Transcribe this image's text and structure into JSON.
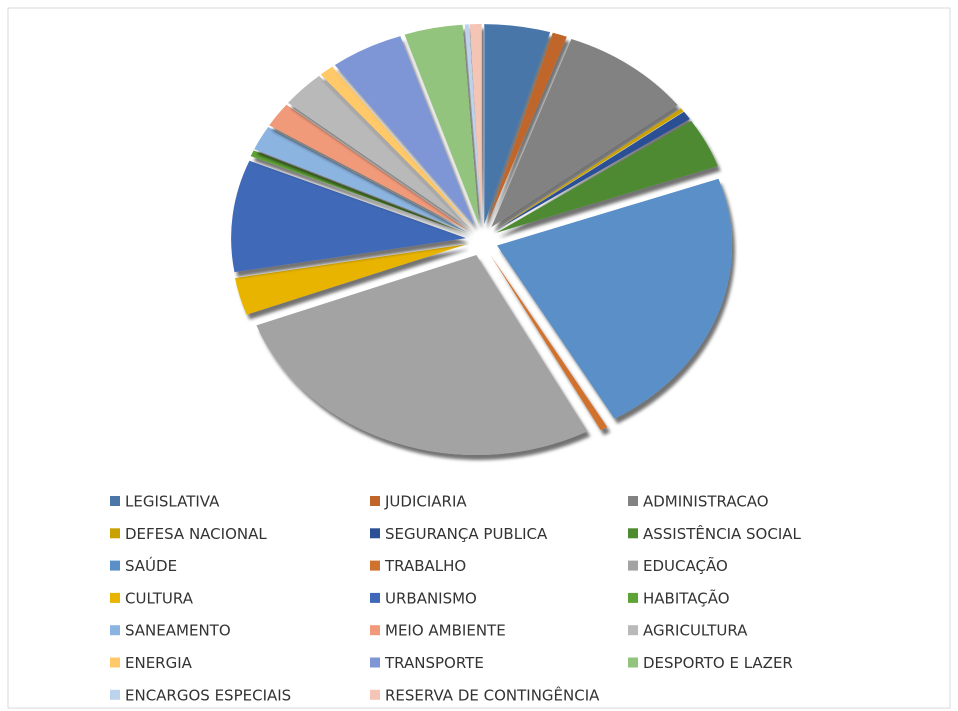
{
  "chart_data": {
    "type": "pie",
    "categories": [
      "LEGISLATIVA",
      "JUDICIARIA",
      "ADMINISTRACAO",
      "DEFESA NACIONAL",
      "SEGURANÇA PUBLICA",
      "ASSISTÊNCIA SOCIAL",
      "SAÚDE",
      "TRABALHO",
      "EDUCAÇÃO",
      "CULTURA",
      "URBANISMO",
      "HABITAÇÃO",
      "SANEAMENTO",
      "MEIO AMBIENTE",
      "AGRICULTURA",
      "ENERGIA",
      "TRANSPORTE",
      "DESPORTO E LAZER",
      "ENCARGOS ESPECIAIS",
      "RESERVA DE CONTINGÊNCIA"
    ],
    "values": [
      4.5,
      1,
      9,
      0.3,
      0.7,
      4,
      22,
      0.5,
      27,
      3,
      9,
      0.5,
      2,
      2,
      3,
      1,
      5,
      4,
      0.3,
      0.8
    ],
    "colors": [
      "#4a76a8",
      "#c0662a",
      "#828282",
      "#c9a100",
      "#2a4f94",
      "#4e8a30",
      "#5a8fc7",
      "#d0722f",
      "#a3a3a3",
      "#e8b400",
      "#3f69b8",
      "#5ea336",
      "#8cb4e0",
      "#f09a7a",
      "#b9b9b9",
      "#ffc868",
      "#7f96d6",
      "#93c47d",
      "#bcd3ee",
      "#f4c4b4"
    ],
    "legend": "bottom"
  }
}
